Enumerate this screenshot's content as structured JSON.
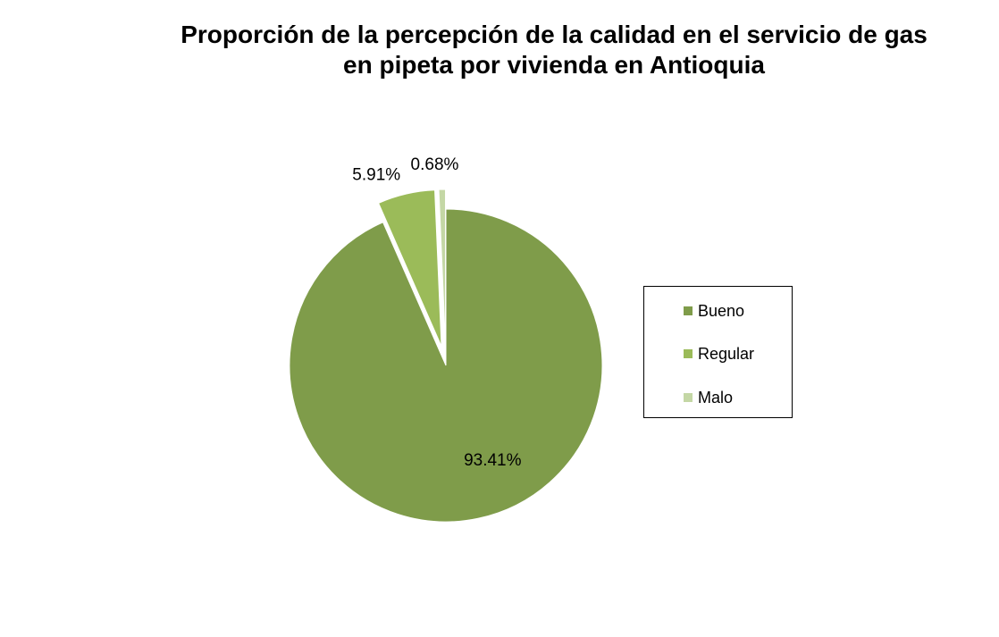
{
  "chart_data": {
    "type": "pie",
    "title": "Proporción de la percepción de la calidad en el servicio de gas en pipeta por vivienda en Antioquia",
    "title_lines": [
      "Proporción de la percepción de la calidad en el servicio de gas",
      "en pipeta por vivienda en Antioquia"
    ],
    "categories": [
      "Bueno",
      "Regular",
      "Malo"
    ],
    "values": [
      93.41,
      5.91,
      0.68
    ],
    "data_labels": [
      "93.41%",
      "5.91%",
      "0.68%"
    ],
    "colors": [
      "#7f9c4a",
      "#9bbb59",
      "#c4d7a5"
    ],
    "exploded": [
      false,
      true,
      true
    ],
    "legend_position": "right"
  }
}
